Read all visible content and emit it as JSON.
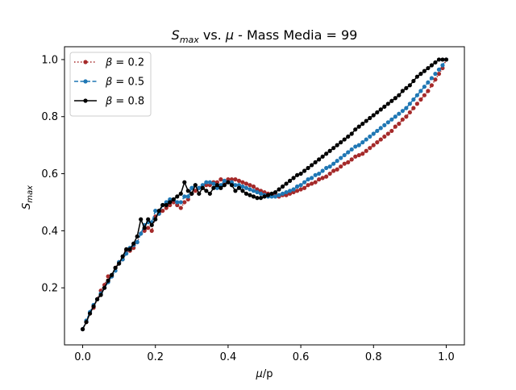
{
  "chart_data": {
    "type": "line",
    "title": {
      "main": "S",
      "sub": "max",
      "rest": " vs. ",
      "mu": "μ",
      "tail": " - Mass Media = 99"
    },
    "xlabel": {
      "mu": "μ",
      "rest": "/p"
    },
    "ylabel": {
      "main": "S",
      "sub": "max"
    },
    "xlim": [
      -0.05,
      1.05
    ],
    "ylim": [
      0.0,
      1.045
    ],
    "x_ticks": [
      0.0,
      0.2,
      0.4,
      0.6,
      0.8,
      1.0
    ],
    "x_tick_labels": [
      "0.0",
      "0.2",
      "0.4",
      "0.6",
      "0.8",
      "1.0"
    ],
    "y_ticks": [
      0.2,
      0.4,
      0.6,
      0.8,
      1.0
    ],
    "y_tick_labels": [
      "0.2",
      "0.4",
      "0.6",
      "0.8",
      "1.0"
    ],
    "legend_position": "upper-left",
    "x": [
      0.0,
      0.01,
      0.02,
      0.03,
      0.04,
      0.05,
      0.06,
      0.07,
      0.08,
      0.09,
      0.1,
      0.11,
      0.12,
      0.13,
      0.14,
      0.15,
      0.16,
      0.17,
      0.18,
      0.19,
      0.2,
      0.21,
      0.22,
      0.23,
      0.24,
      0.25,
      0.26,
      0.27,
      0.28,
      0.29,
      0.3,
      0.31,
      0.32,
      0.33,
      0.34,
      0.35,
      0.36,
      0.37,
      0.38,
      0.39,
      0.4,
      0.41,
      0.42,
      0.43,
      0.44,
      0.45,
      0.46,
      0.47,
      0.48,
      0.49,
      0.5,
      0.51,
      0.52,
      0.53,
      0.54,
      0.55,
      0.56,
      0.57,
      0.58,
      0.59,
      0.6,
      0.61,
      0.62,
      0.63,
      0.64,
      0.65,
      0.66,
      0.67,
      0.68,
      0.69,
      0.7,
      0.71,
      0.72,
      0.73,
      0.74,
      0.75,
      0.76,
      0.77,
      0.78,
      0.79,
      0.8,
      0.81,
      0.82,
      0.83,
      0.84,
      0.85,
      0.86,
      0.87,
      0.88,
      0.89,
      0.9,
      0.91,
      0.92,
      0.93,
      0.94,
      0.95,
      0.96,
      0.97,
      0.98,
      0.99,
      1.0
    ],
    "series": [
      {
        "name": "β = 0.2",
        "label_beta": "β",
        "label_value": " = 0.2",
        "color": "#a52a2a",
        "linestyle": "dotted",
        "values": [
          0.055,
          0.08,
          0.11,
          0.13,
          0.16,
          0.19,
          0.21,
          0.24,
          0.24,
          0.27,
          0.29,
          0.3,
          0.33,
          0.33,
          0.34,
          0.36,
          0.39,
          0.4,
          0.41,
          0.4,
          0.45,
          0.46,
          0.47,
          0.48,
          0.49,
          0.5,
          0.49,
          0.48,
          0.5,
          0.51,
          0.53,
          0.54,
          0.55,
          0.55,
          0.56,
          0.56,
          0.57,
          0.57,
          0.58,
          0.57,
          0.58,
          0.58,
          0.58,
          0.575,
          0.57,
          0.565,
          0.56,
          0.555,
          0.545,
          0.54,
          0.535,
          0.53,
          0.525,
          0.525,
          0.52,
          0.525,
          0.525,
          0.53,
          0.535,
          0.54,
          0.545,
          0.55,
          0.56,
          0.565,
          0.57,
          0.58,
          0.585,
          0.59,
          0.6,
          0.61,
          0.615,
          0.625,
          0.635,
          0.64,
          0.65,
          0.66,
          0.665,
          0.67,
          0.68,
          0.69,
          0.7,
          0.71,
          0.72,
          0.73,
          0.74,
          0.75,
          0.765,
          0.775,
          0.79,
          0.8,
          0.815,
          0.83,
          0.845,
          0.86,
          0.875,
          0.89,
          0.91,
          0.93,
          0.95,
          0.97,
          1.0
        ]
      },
      {
        "name": "β = 0.5",
        "label_beta": "β",
        "label_value": " = 0.5",
        "color": "#1f77b4",
        "linestyle": "dashed",
        "values": [
          0.055,
          0.085,
          0.115,
          0.14,
          0.16,
          0.18,
          0.2,
          0.22,
          0.24,
          0.26,
          0.29,
          0.3,
          0.32,
          0.34,
          0.35,
          0.36,
          0.39,
          0.42,
          0.43,
          0.43,
          0.47,
          0.46,
          0.49,
          0.5,
          0.51,
          0.51,
          0.5,
          0.5,
          0.52,
          0.52,
          0.55,
          0.56,
          0.55,
          0.56,
          0.57,
          0.57,
          0.565,
          0.55,
          0.56,
          0.575,
          0.57,
          0.57,
          0.56,
          0.56,
          0.555,
          0.55,
          0.545,
          0.54,
          0.535,
          0.53,
          0.525,
          0.52,
          0.52,
          0.52,
          0.525,
          0.53,
          0.535,
          0.54,
          0.545,
          0.555,
          0.56,
          0.57,
          0.58,
          0.585,
          0.595,
          0.6,
          0.61,
          0.62,
          0.625,
          0.635,
          0.645,
          0.655,
          0.665,
          0.675,
          0.685,
          0.695,
          0.7,
          0.71,
          0.72,
          0.73,
          0.74,
          0.75,
          0.76,
          0.77,
          0.78,
          0.79,
          0.8,
          0.81,
          0.82,
          0.83,
          0.845,
          0.86,
          0.875,
          0.89,
          0.905,
          0.92,
          0.935,
          0.95,
          0.965,
          0.98,
          1.0
        ]
      },
      {
        "name": "β = 0.8",
        "label_beta": "β",
        "label_value": " = 0.8",
        "color": "#000000",
        "linestyle": "solid",
        "values": [
          0.055,
          0.08,
          0.11,
          0.135,
          0.16,
          0.175,
          0.2,
          0.225,
          0.245,
          0.27,
          0.285,
          0.31,
          0.335,
          0.335,
          0.355,
          0.38,
          0.44,
          0.41,
          0.44,
          0.42,
          0.44,
          0.47,
          0.49,
          0.49,
          0.5,
          0.51,
          0.52,
          0.53,
          0.57,
          0.54,
          0.53,
          0.56,
          0.53,
          0.55,
          0.54,
          0.53,
          0.55,
          0.56,
          0.55,
          0.56,
          0.57,
          0.56,
          0.54,
          0.55,
          0.54,
          0.53,
          0.525,
          0.52,
          0.515,
          0.515,
          0.52,
          0.525,
          0.53,
          0.535,
          0.545,
          0.555,
          0.565,
          0.575,
          0.585,
          0.595,
          0.6,
          0.61,
          0.62,
          0.63,
          0.64,
          0.65,
          0.66,
          0.67,
          0.68,
          0.69,
          0.7,
          0.71,
          0.72,
          0.73,
          0.74,
          0.755,
          0.765,
          0.775,
          0.785,
          0.795,
          0.805,
          0.815,
          0.825,
          0.835,
          0.845,
          0.855,
          0.865,
          0.875,
          0.89,
          0.9,
          0.91,
          0.925,
          0.94,
          0.95,
          0.96,
          0.97,
          0.98,
          0.99,
          1.0,
          1.0,
          1.0
        ]
      }
    ]
  }
}
